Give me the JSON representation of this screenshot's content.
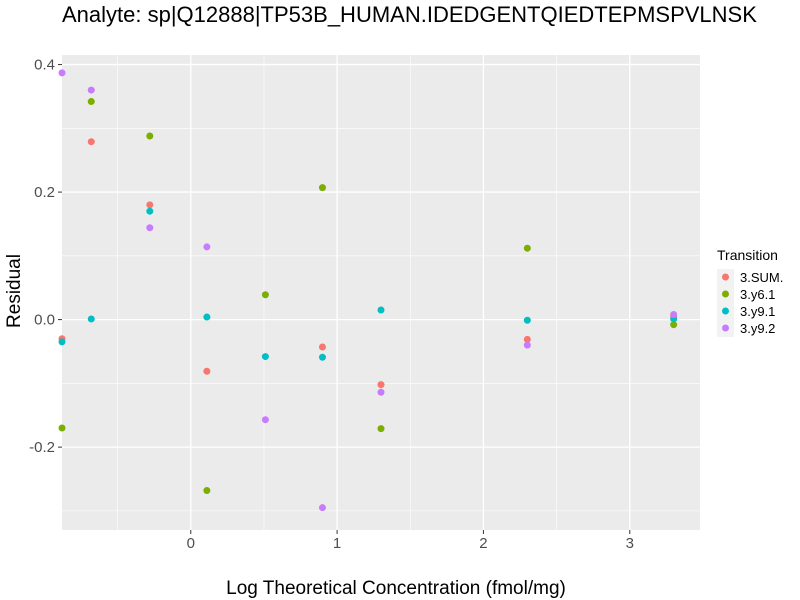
{
  "chart_data": {
    "type": "scatter",
    "title": "Analyte: sp|Q12888|TP53B_HUMAN.IDEDGENTQIEDTEPMSPVLNSK",
    "xlabel": "Log Theoretical Concentration (fmol/mg)",
    "ylabel": "Residual",
    "xlim": [
      -0.88,
      3.48
    ],
    "ylim": [
      -0.33,
      0.415
    ],
    "x_ticks": [
      0,
      1,
      2,
      3
    ],
    "x_tick_labels": [
      "0",
      "1",
      "2",
      "3"
    ],
    "y_ticks": [
      -0.2,
      0.0,
      0.2,
      0.4
    ],
    "y_tick_labels": [
      "-0.2",
      "0.0",
      "0.2",
      "0.4"
    ],
    "grid": true,
    "background": "#ebebeb",
    "legend": {
      "title": "Transition",
      "position": "right"
    },
    "series": [
      {
        "name": "3.SUM.",
        "color": "#F8766D",
        "points": [
          [
            -0.88,
            -0.03
          ],
          [
            -0.68,
            0.279
          ],
          [
            -0.28,
            0.18
          ],
          [
            0.11,
            -0.081
          ],
          [
            0.9,
            -0.043
          ],
          [
            1.3,
            -0.102
          ],
          [
            2.3,
            -0.031
          ],
          [
            3.3,
            0.005
          ]
        ]
      },
      {
        "name": "3.y6.1",
        "color": "#7CAE00",
        "points": [
          [
            -0.88,
            -0.17
          ],
          [
            -0.68,
            0.342
          ],
          [
            -0.28,
            0.288
          ],
          [
            0.11,
            -0.268
          ],
          [
            0.51,
            0.039
          ],
          [
            0.9,
            0.207
          ],
          [
            1.3,
            -0.171
          ],
          [
            2.3,
            0.112
          ],
          [
            3.3,
            -0.008
          ]
        ]
      },
      {
        "name": "3.y9.1",
        "color": "#00BFC4",
        "points": [
          [
            -0.88,
            -0.035
          ],
          [
            -0.68,
            0.001
          ],
          [
            -0.28,
            0.17
          ],
          [
            0.11,
            0.004
          ],
          [
            0.51,
            -0.058
          ],
          [
            0.9,
            -0.059
          ],
          [
            1.3,
            0.015
          ],
          [
            2.3,
            -0.001
          ],
          [
            3.3,
            0.001
          ]
        ]
      },
      {
        "name": "3.y9.2",
        "color": "#C77CFF",
        "points": [
          [
            -0.88,
            0.387
          ],
          [
            -0.68,
            0.36
          ],
          [
            -0.28,
            0.144
          ],
          [
            0.11,
            0.114
          ],
          [
            0.51,
            -0.157
          ],
          [
            0.9,
            -0.295
          ],
          [
            1.3,
            -0.114
          ],
          [
            2.3,
            -0.04
          ],
          [
            3.3,
            0.008
          ]
        ]
      }
    ]
  }
}
